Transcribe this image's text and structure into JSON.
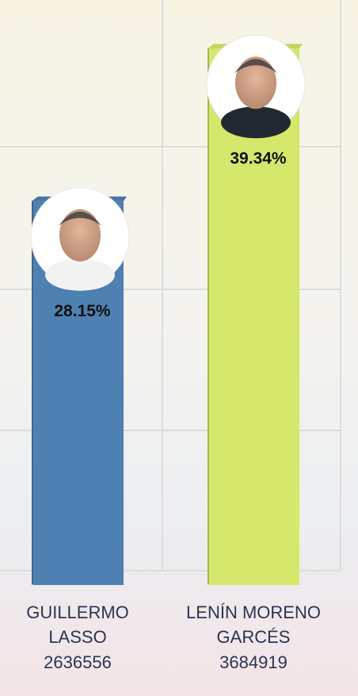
{
  "chart_data": {
    "type": "bar",
    "categories": [
      [
        "GUILLERMO",
        "LASSO"
      ],
      [
        "LENÍN MORENO",
        "GARCÉS"
      ]
    ],
    "votes": [
      2636556,
      3684919
    ],
    "values": [
      28.15,
      39.34
    ],
    "value_labels": [
      "28.15%",
      "39.34%"
    ],
    "colors": [
      "#4f80b2",
      "#d5e86c"
    ]
  }
}
